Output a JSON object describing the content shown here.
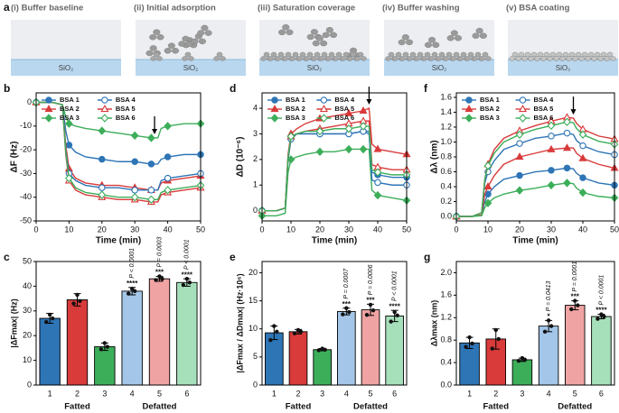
{
  "schematic": {
    "panel": "a",
    "substrate": "SiO₂",
    "steps": [
      "(i) Buffer baseline",
      "(ii) Initial adsorption",
      "(iii) Saturation coverage",
      "(iv) Buffer washing",
      "(v) BSA coating"
    ]
  },
  "chart_data": [
    {
      "type": "line",
      "panel": "b",
      "x_label": "Time (min)",
      "y_label": "ΔF (Hz)",
      "x": [
        0,
        5,
        8,
        9,
        10,
        12,
        15,
        20,
        25,
        30,
        35,
        37,
        38,
        40,
        45,
        50
      ],
      "xlim": [
        0,
        50
      ],
      "xticks": [
        0,
        10,
        20,
        30,
        40,
        50
      ],
      "ylim": [
        -50,
        4
      ],
      "yticks": [
        0,
        -10,
        -20,
        -30,
        -40,
        -50
      ],
      "legend": "upper left",
      "arrow_x": 36,
      "series": [
        {
          "name": "BSA 1",
          "color": "#2e75b6",
          "marker": "circle",
          "open": false,
          "values": [
            0,
            0,
            -1,
            -12,
            -18,
            -21,
            -23,
            -24,
            -25,
            -25,
            -26,
            -26,
            -24,
            -23,
            -22,
            -22
          ]
        },
        {
          "name": "BSA 2",
          "color": "#d93a3a",
          "marker": "triangle",
          "open": false,
          "values": [
            0,
            0,
            -1,
            -18,
            -28,
            -32,
            -34,
            -35,
            -35,
            -36,
            -37,
            -37,
            -34,
            -33,
            -32,
            -31
          ]
        },
        {
          "name": "BSA 3",
          "color": "#3cae5a",
          "marker": "diamond",
          "open": false,
          "values": [
            0,
            0,
            -1,
            -6,
            -9,
            -10,
            -11,
            -12,
            -13,
            -14,
            -15,
            -15,
            -11,
            -10,
            -9,
            -9
          ]
        },
        {
          "name": "BSA 4",
          "color": "#2e75b6",
          "marker": "circle",
          "open": true,
          "values": [
            0,
            0,
            -1,
            -20,
            -30,
            -33,
            -35,
            -36,
            -36,
            -37,
            -37,
            -37,
            -33,
            -32,
            -31,
            -30
          ]
        },
        {
          "name": "BSA 5",
          "color": "#d93a3a",
          "marker": "triangle",
          "open": true,
          "values": [
            0,
            0,
            -1,
            -22,
            -33,
            -37,
            -39,
            -40,
            -41,
            -41,
            -42,
            -42,
            -39,
            -38,
            -37,
            -36
          ]
        },
        {
          "name": "BSA 6",
          "color": "#3cae5a",
          "marker": "diamond",
          "open": true,
          "values": [
            0,
            0,
            -1,
            -21,
            -32,
            -36,
            -38,
            -39,
            -40,
            -40,
            -41,
            -41,
            -38,
            -37,
            -36,
            -35
          ]
        }
      ]
    },
    {
      "type": "line",
      "panel": "d",
      "x_label": "Time (min)",
      "y_label": "ΔD (10⁻⁶)",
      "x": [
        0,
        5,
        8,
        9,
        10,
        12,
        15,
        20,
        25,
        30,
        35,
        37,
        38,
        40,
        45,
        50
      ],
      "xlim": [
        0,
        50
      ],
      "xticks": [
        0,
        10,
        20,
        30,
        40,
        50
      ],
      "ylim": [
        -0.4,
        4.6
      ],
      "yticks": [
        0,
        1,
        2,
        3,
        4
      ],
      "legend": "upper left",
      "arrow_x": 37,
      "series": [
        {
          "name": "BSA 1",
          "color": "#2e75b6",
          "marker": "circle",
          "open": false,
          "values": [
            0,
            0,
            0.1,
            2.0,
            2.8,
            3.0,
            3.0,
            3.0,
            3.0,
            3.0,
            3.1,
            3.0,
            1.5,
            1.4,
            1.3,
            1.3
          ]
        },
        {
          "name": "BSA 2",
          "color": "#d93a3a",
          "marker": "triangle",
          "open": false,
          "values": [
            0,
            0,
            0.1,
            2.2,
            3.0,
            3.2,
            3.4,
            3.6,
            3.7,
            3.8,
            3.9,
            4.0,
            2.6,
            2.4,
            2.3,
            2.2
          ]
        },
        {
          "name": "BSA 3",
          "color": "#3cae5a",
          "marker": "diamond",
          "open": false,
          "values": [
            -0.2,
            -0.2,
            -0.1,
            1.5,
            2.0,
            2.1,
            2.2,
            2.3,
            2.3,
            2.4,
            2.4,
            2.4,
            0.8,
            0.6,
            0.5,
            0.4
          ]
        },
        {
          "name": "BSA 4",
          "color": "#2e75b6",
          "marker": "circle",
          "open": true,
          "values": [
            0,
            0,
            0.1,
            2.0,
            2.8,
            3.0,
            3.0,
            3.0,
            3.0,
            3.0,
            3.1,
            3.1,
            1.2,
            1.1,
            1.0,
            1.0
          ]
        },
        {
          "name": "BSA 5",
          "color": "#d93a3a",
          "marker": "triangle",
          "open": true,
          "values": [
            0,
            0,
            0.1,
            2.1,
            2.9,
            3.0,
            3.1,
            3.2,
            3.3,
            3.4,
            3.5,
            3.5,
            1.8,
            1.7,
            1.6,
            1.6
          ]
        },
        {
          "name": "BSA 6",
          "color": "#3cae5a",
          "marker": "diamond",
          "open": true,
          "values": [
            0,
            0,
            0.1,
            2.1,
            2.9,
            3.0,
            3.1,
            3.1,
            3.2,
            3.2,
            3.3,
            3.3,
            1.6,
            1.5,
            1.4,
            1.4
          ]
        }
      ]
    },
    {
      "type": "line",
      "panel": "f",
      "x_label": "Time (min)",
      "y_label": "Δλ (nm)",
      "x": [
        0,
        5,
        8,
        9,
        10,
        12,
        15,
        20,
        25,
        30,
        35,
        37,
        38,
        40,
        45,
        50
      ],
      "xlim": [
        0,
        50
      ],
      "xticks": [
        0,
        10,
        20,
        30,
        40,
        50
      ],
      "ylim": [
        -0.06,
        1.66
      ],
      "yticks": [
        {
          "value": 0,
          "label": "0.0"
        },
        0.2,
        0.4,
        0.6,
        0.8,
        {
          "value": 1,
          "label": "1.0"
        },
        1.2,
        1.4,
        1.6
      ],
      "legend": "upper left",
      "arrow_x": 37,
      "series": [
        {
          "name": "BSA 1",
          "color": "#2e75b6",
          "marker": "circle",
          "open": false,
          "values": [
            0,
            0,
            0.02,
            0.2,
            0.3,
            0.4,
            0.5,
            0.55,
            0.6,
            0.62,
            0.65,
            0.64,
            0.58,
            0.52,
            0.45,
            0.42
          ]
        },
        {
          "name": "BSA 2",
          "color": "#d93a3a",
          "marker": "triangle",
          "open": false,
          "values": [
            0,
            0,
            0.02,
            0.3,
            0.4,
            0.55,
            0.7,
            0.8,
            0.85,
            0.9,
            0.92,
            0.92,
            0.85,
            0.78,
            0.7,
            0.65
          ]
        },
        {
          "name": "BSA 3",
          "color": "#3cae5a",
          "marker": "diamond",
          "open": false,
          "values": [
            0,
            0,
            0.01,
            0.12,
            0.18,
            0.25,
            0.3,
            0.35,
            0.38,
            0.42,
            0.45,
            0.44,
            0.38,
            0.32,
            0.27,
            0.25
          ]
        },
        {
          "name": "BSA 4",
          "color": "#2e75b6",
          "marker": "circle",
          "open": true,
          "values": [
            0,
            0,
            0.05,
            0.45,
            0.6,
            0.75,
            0.9,
            0.98,
            1.05,
            1.08,
            1.12,
            1.1,
            1.02,
            0.95,
            0.87,
            0.83
          ]
        },
        {
          "name": "BSA 5",
          "color": "#d93a3a",
          "marker": "triangle",
          "open": true,
          "values": [
            0,
            0,
            0.05,
            0.5,
            0.7,
            0.9,
            1.05,
            1.15,
            1.22,
            1.28,
            1.33,
            1.32,
            1.25,
            1.17,
            1.08,
            1.04
          ]
        },
        {
          "name": "BSA 6",
          "color": "#3cae5a",
          "marker": "diamond",
          "open": true,
          "values": [
            0,
            0,
            0.05,
            0.5,
            0.68,
            0.85,
            1.0,
            1.1,
            1.17,
            1.22,
            1.27,
            1.26,
            1.18,
            1.1,
            1.01,
            0.97
          ]
        }
      ]
    },
    {
      "type": "bar",
      "panel": "c",
      "y_label": "|ΔFmax| (Hz)",
      "categories": [
        "1",
        "2",
        "3",
        "4",
        "5",
        "6"
      ],
      "values": [
        27,
        34.5,
        15.5,
        38,
        43,
        41.5
      ],
      "errors": [
        2,
        2.5,
        1.5,
        1.5,
        1,
        1.5
      ],
      "points": [
        [
          25.5,
          27,
          28.5
        ],
        [
          33,
          34,
          36.5
        ],
        [
          14.5,
          15.5,
          17
        ],
        [
          37,
          38,
          39
        ],
        [
          42.5,
          43,
          44
        ],
        [
          40.5,
          41.5,
          43
        ]
      ],
      "colors": [
        "#2e75b6",
        "#d93a3a",
        "#3cae5a",
        "#a4c6e8",
        "#f0a3a3",
        "#a6e0bb"
      ],
      "stars": [
        null,
        null,
        null,
        "****",
        "***",
        "****"
      ],
      "p_values": [
        null,
        null,
        null,
        "P < 0.0001",
        "P = 0.0003",
        "P < 0.0001"
      ],
      "groups": [
        {
          "label": "Fatted",
          "span": [
            0,
            2
          ]
        },
        {
          "label": "Defatted",
          "span": [
            3,
            5
          ]
        }
      ],
      "ylim": [
        0,
        50
      ],
      "yticks": [
        0,
        10,
        20,
        30,
        40,
        50
      ]
    },
    {
      "type": "bar",
      "panel": "e",
      "y_label": "|ΔFmax / ΔDmax| (Hz·10⁶)",
      "categories": [
        "1",
        "2",
        "3",
        "4",
        "5",
        "6"
      ],
      "values": [
        9.3,
        9.5,
        6.3,
        13.1,
        13.4,
        12.3
      ],
      "errors": [
        1.2,
        0.4,
        0.2,
        0.6,
        1,
        1
      ],
      "points": [
        [
          8,
          9.5,
          10.5
        ],
        [
          9.2,
          9.5,
          9.8
        ],
        [
          6.2,
          6.3,
          6.5
        ],
        [
          12.6,
          13,
          13.7
        ],
        [
          12.5,
          13.3,
          14.3
        ],
        [
          11.3,
          12.4,
          13
        ]
      ],
      "colors": [
        "#2e75b6",
        "#d93a3a",
        "#3cae5a",
        "#a4c6e8",
        "#f0a3a3",
        "#a6e0bb"
      ],
      "stars": [
        null,
        null,
        null,
        "***",
        "***",
        "****"
      ],
      "p_values": [
        null,
        null,
        null,
        "P = 0.0007",
        "P = 0.0006",
        "P < 0.0001"
      ],
      "groups": [
        {
          "label": "Fatted",
          "span": [
            0,
            2
          ]
        },
        {
          "label": "Defatted",
          "span": [
            3,
            5
          ]
        }
      ],
      "ylim": [
        0,
        22
      ],
      "yticks": [
        0,
        5,
        10,
        15,
        20
      ]
    },
    {
      "type": "bar",
      "panel": "g",
      "y_label": "Δλmax (nm)",
      "categories": [
        "1",
        "2",
        "3",
        "4",
        "5",
        "6"
      ],
      "values": [
        0.75,
        0.82,
        0.45,
        1.05,
        1.42,
        1.22
      ],
      "errors": [
        0.1,
        0.18,
        0.03,
        0.1,
        0.08,
        0.04
      ],
      "points": [
        [
          0.68,
          0.74,
          0.85
        ],
        [
          0.65,
          0.82,
          0.98
        ],
        [
          0.43,
          0.45,
          0.48
        ],
        [
          0.95,
          1.05,
          1.15
        ],
        [
          1.35,
          1.42,
          1.5
        ],
        [
          1.18,
          1.22,
          1.26
        ]
      ],
      "colors": [
        "#2e75b6",
        "#d93a3a",
        "#3cae5a",
        "#a4c6e8",
        "#f0a3a3",
        "#a6e0bb"
      ],
      "stars": [
        null,
        null,
        null,
        "*",
        "***",
        "****"
      ],
      "p_values": [
        null,
        null,
        null,
        "P = 0.0413",
        "P = 0.0001",
        "P < 0.0001"
      ],
      "groups": [
        {
          "label": "Fatted",
          "span": [
            0,
            2
          ]
        },
        {
          "label": "Defatted",
          "span": [
            3,
            5
          ]
        }
      ],
      "ylim": [
        0,
        2.2
      ],
      "yticks": [
        {
          "value": 0,
          "label": "0.0"
        },
        0.4,
        0.8,
        1.2,
        1.6,
        {
          "value": 2,
          "label": "2.0"
        }
      ]
    }
  ]
}
